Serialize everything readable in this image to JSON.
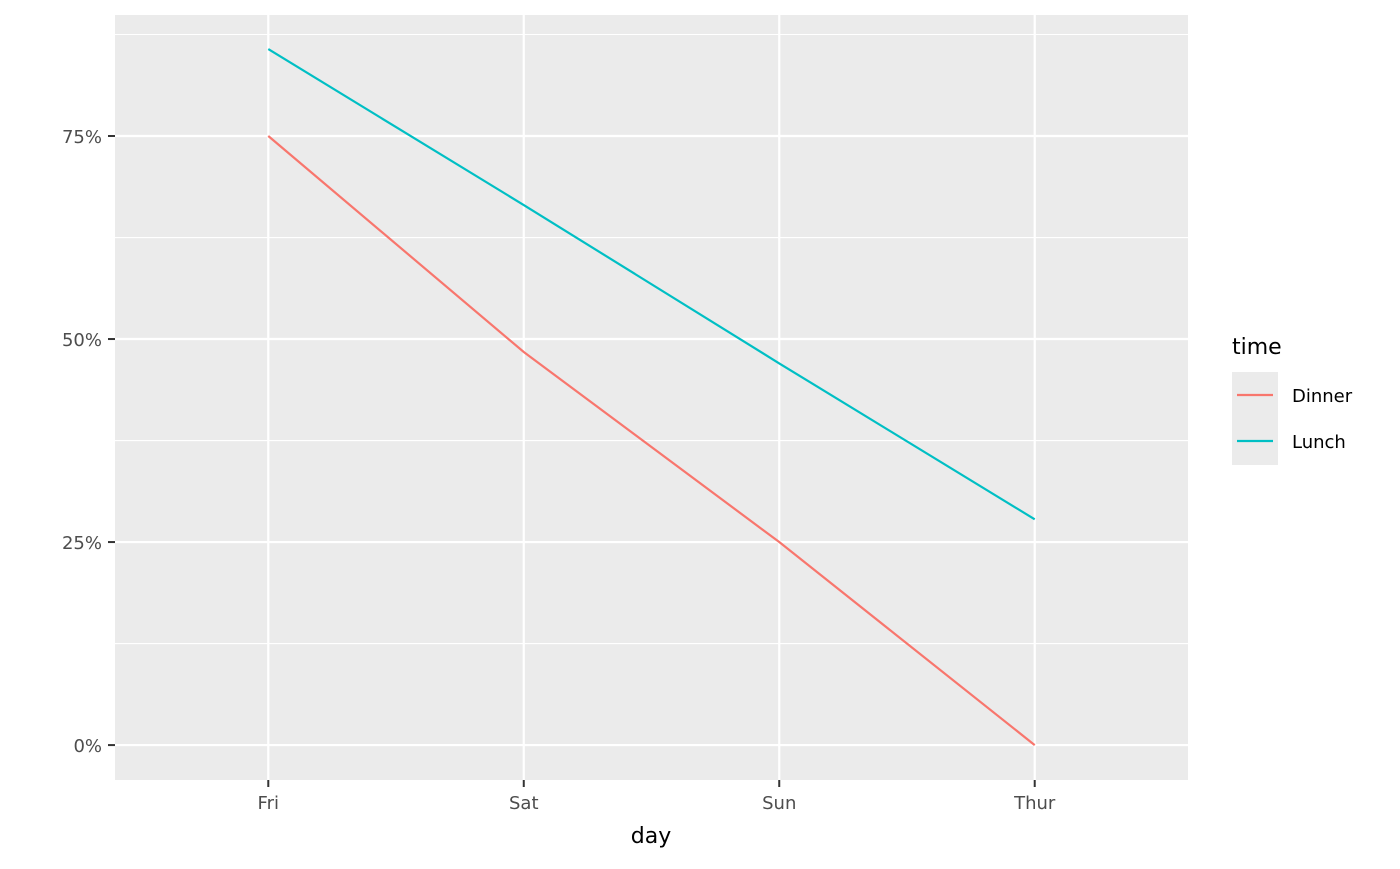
{
  "chart_data": {
    "type": "line",
    "title": "",
    "xlabel": "day",
    "ylabel": "",
    "categories": [
      "Fri",
      "Sat",
      "Sun",
      "Thur"
    ],
    "y_ticks": [
      0,
      0.25,
      0.5,
      0.75
    ],
    "y_tick_labels": [
      "0%",
      "25%",
      "50%",
      "75%"
    ],
    "ylim": [
      -0.043,
      0.899
    ],
    "grid": true,
    "legend": {
      "title": "time",
      "placement": "right"
    },
    "series": [
      {
        "name": "Dinner",
        "color": "#F8766D",
        "values": [
          0.75,
          0.484,
          0.25,
          0.0
        ]
      },
      {
        "name": "Lunch",
        "color": "#00BFC4",
        "values": [
          0.857,
          0.665,
          0.47,
          0.278
        ]
      }
    ],
    "panel_background": "#EBEBEB"
  }
}
